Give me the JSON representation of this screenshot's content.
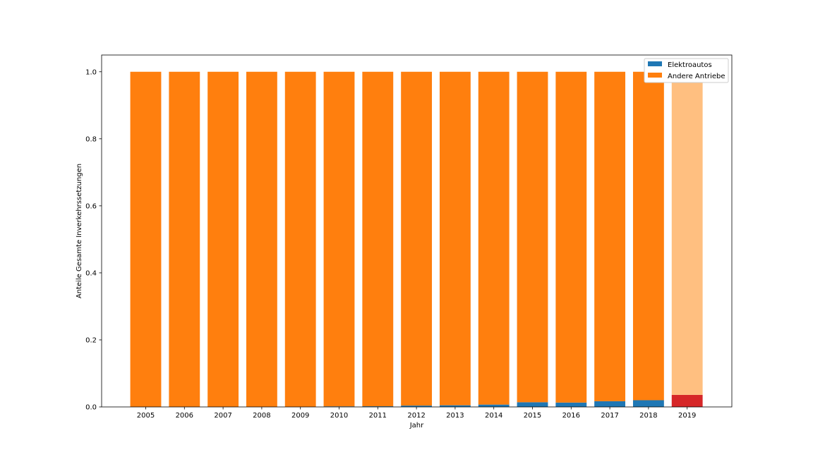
{
  "chart_data": {
    "type": "bar",
    "stacked": true,
    "normalized": true,
    "categories": [
      "2005",
      "2006",
      "2007",
      "2008",
      "2009",
      "2010",
      "2011",
      "2012",
      "2013",
      "2014",
      "2015",
      "2016",
      "2017",
      "2018",
      "2019"
    ],
    "series": [
      {
        "name": "Elektroautos",
        "color": "#1f77b4",
        "values": [
          0.0,
          0.0,
          0.0,
          0.0,
          0.0,
          0.0017,
          0.002,
          0.004,
          0.005,
          0.007,
          0.014,
          0.013,
          0.017,
          0.02,
          0.036
        ]
      },
      {
        "name": "Andere Antriebe",
        "color": "#ff7f0e",
        "values": [
          1.0,
          1.0,
          1.0,
          1.0,
          1.0,
          0.9983,
          0.998,
          0.996,
          0.995,
          0.993,
          0.986,
          0.987,
          0.983,
          0.98,
          0.964
        ]
      }
    ],
    "highlight": {
      "category": "2019",
      "colors": {
        "Elektroautos": "#d62728",
        "Andere Antriebe": "#ffbf80"
      }
    },
    "xlabel": "Jahr",
    "ylabel": "Anteile Gesamte Inverkehrssetzungen",
    "ylim": [
      0,
      1.05
    ],
    "yticks": [
      "0.0",
      "0.2",
      "0.4",
      "0.6",
      "0.8",
      "1.0"
    ],
    "legend_position": "top-right",
    "grid": false
  }
}
